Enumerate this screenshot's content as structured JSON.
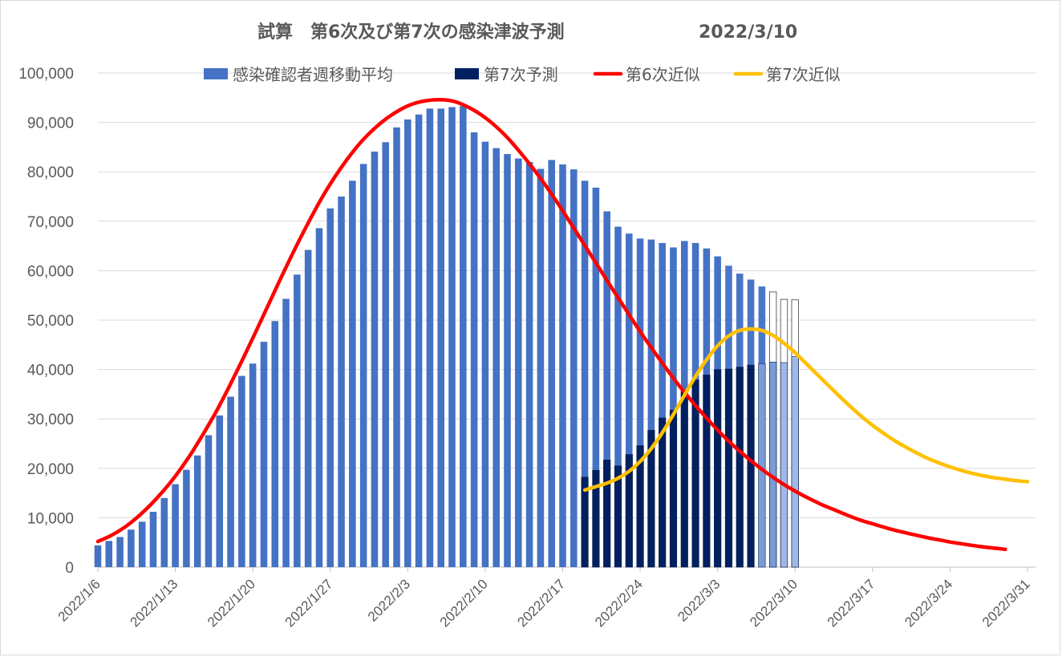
{
  "chart_data": {
    "type": "bar",
    "title": "試算　第6次及び第7次の感染津波予測",
    "date_label": "2022/3/10",
    "ylim": [
      0,
      100000
    ],
    "yticks": [
      "0",
      "10,000",
      "20,000",
      "30,000",
      "40,000",
      "50,000",
      "60,000",
      "70,000",
      "80,000",
      "90,000",
      "100,000"
    ],
    "xlim": [
      "2022/1/6",
      "2022/3/31"
    ],
    "xticks": [
      "2022/1/6",
      "2022/1/13",
      "2022/1/20",
      "2022/1/27",
      "2022/2/3",
      "2022/2/10",
      "2022/2/17",
      "2022/2/24",
      "2022/3/3",
      "2022/3/10",
      "2022/3/17",
      "2022/3/24",
      "2022/3/31"
    ],
    "grid": true,
    "legend_position": "top",
    "legend": [
      {
        "label": "感染確認者週移動平均",
        "kind": "bar",
        "color": "#4472c4"
      },
      {
        "label": "第7次予測",
        "kind": "bar",
        "color": "#002060"
      },
      {
        "label": "第6次近似",
        "kind": "line",
        "color": "#ff0000"
      },
      {
        "label": "第7次近似",
        "kind": "line",
        "color": "#ffc000"
      }
    ],
    "series": [
      {
        "name": "感染確認者週移動平均",
        "start_date": "2022/1/6",
        "values": [
          4400,
          5300,
          6100,
          7600,
          9200,
          11200,
          14000,
          16800,
          19700,
          22600,
          26700,
          30700,
          34500,
          38700,
          41200,
          45600,
          49800,
          54300,
          59200,
          64200,
          68600,
          72600,
          75000,
          78200,
          81600,
          84100,
          86000,
          89000,
          90600,
          91600,
          92800,
          92800,
          93100,
          93300,
          88000,
          86100,
          84800,
          83600,
          82700,
          82000,
          80600,
          82400,
          81500,
          80500,
          78200,
          76800,
          72000,
          68900,
          67500,
          66500,
          66300,
          65600,
          64700,
          66000,
          65600,
          64500,
          62900,
          61000,
          59400,
          58200,
          56800,
          55700,
          54200,
          54100
        ],
        "colors_note": "blue bars; last entries shaded light/white"
      },
      {
        "name": "第7次予測",
        "start_date": "2022/2/19",
        "values": [
          18200,
          19600,
          21700,
          20500,
          22800,
          24600,
          27700,
          30200,
          31800,
          35600,
          37900,
          38900,
          40000,
          40100,
          40500,
          40900,
          41200,
          41500,
          41400,
          42600
        ]
      },
      {
        "name": "第6次近似",
        "start_date": "2022/1/6",
        "values": [
          5200,
          6400,
          8000,
          10100,
          12600,
          15500,
          18800,
          22600,
          26900,
          31500,
          36600,
          42000,
          47600,
          53300,
          59000,
          64500,
          69700,
          74600,
          78900,
          82700,
          86000,
          88700,
          90900,
          92600,
          93800,
          94400,
          94600,
          94300,
          93300,
          91800,
          89800,
          87300,
          84300,
          81000,
          77400,
          73500,
          69400,
          65200,
          61000,
          56800,
          52700,
          48600,
          44700,
          41000,
          37400,
          34100,
          31000,
          28100,
          25400,
          23000,
          20800,
          18800,
          17000,
          15400,
          14000,
          12700,
          11600,
          10500,
          9500,
          8700,
          7900,
          7200,
          6600,
          6000,
          5500,
          5000,
          4600,
          4200,
          3900,
          3600
        ],
        "x_start_offset_days": 0,
        "x_end_date": "2022/3/29"
      },
      {
        "name": "第7次近似",
        "start_date": "2022/2/19",
        "values": [
          15600,
          16300,
          17000,
          18000,
          19400,
          21400,
          24000,
          27200,
          30900,
          34800,
          38600,
          42000,
          44800,
          46800,
          47900,
          48200,
          47900,
          46900,
          45300,
          43400,
          41200,
          39000,
          36800,
          34600,
          32500,
          30500,
          28700,
          27100,
          25600,
          24300,
          23100,
          22000,
          21100,
          20300,
          19600,
          19000,
          18500,
          18100,
          17800,
          17500,
          17300
        ]
      }
    ]
  }
}
